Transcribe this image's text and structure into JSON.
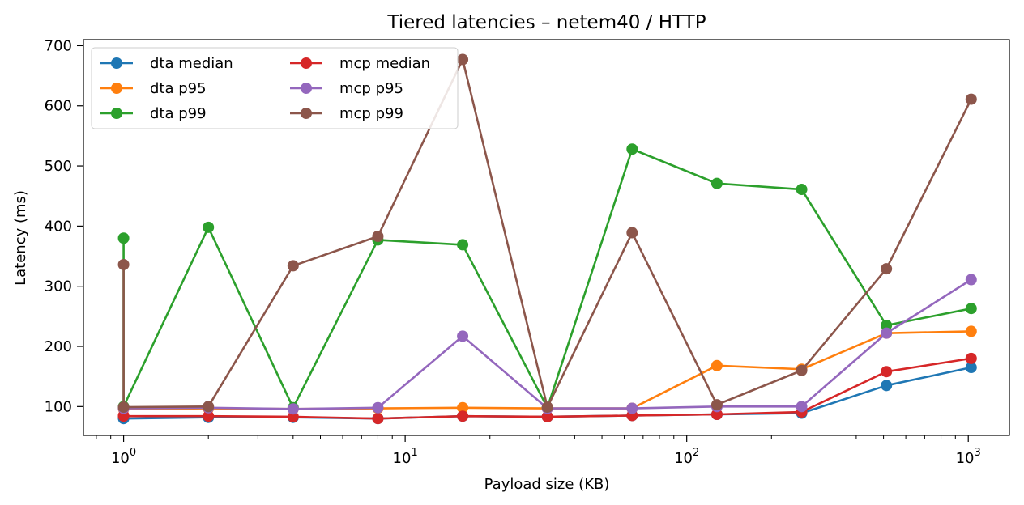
{
  "chart_data": {
    "type": "line",
    "title": "Tiered latencies – netem40 / HTTP",
    "xlabel": "Payload size (KB)",
    "ylabel": "Latency (ms)",
    "x_scale": "log",
    "xlim": [
      0.72,
      1400
    ],
    "ylim": [
      52,
      710
    ],
    "x_ticks": [
      {
        "value": 1,
        "base": "10",
        "exp": "0"
      },
      {
        "value": 10,
        "base": "10",
        "exp": "1"
      },
      {
        "value": 100,
        "base": "10",
        "exp": "2"
      },
      {
        "value": 1000,
        "base": "10",
        "exp": "3"
      }
    ],
    "y_ticks": [
      100,
      200,
      300,
      400,
      500,
      600,
      700
    ],
    "grid": false,
    "legend_position": "top-left",
    "legend_columns": 2,
    "series": [
      {
        "name": "dta median",
        "color": "#1f77b4",
        "x": [
          1,
          1,
          2,
          4,
          8,
          16,
          32,
          64,
          128,
          256,
          512,
          1024
        ],
        "y": [
          81,
          80,
          82,
          82,
          80,
          84,
          83,
          85,
          87,
          89,
          135,
          165
        ]
      },
      {
        "name": "dta p95",
        "color": "#ff7f0e",
        "x": [
          1,
          1,
          2,
          4,
          8,
          16,
          32,
          64,
          128,
          256,
          512,
          1024
        ],
        "y": [
          97,
          96,
          97,
          96,
          97,
          98,
          97,
          97,
          168,
          162,
          222,
          225
        ]
      },
      {
        "name": "dta p99",
        "color": "#2ca02c",
        "x": [
          1,
          1,
          2,
          4,
          8,
          16,
          32,
          64,
          128,
          256,
          512,
          1024
        ],
        "y": [
          380,
          100,
          398,
          98,
          377,
          369,
          98,
          528,
          471,
          461,
          235,
          263
        ]
      },
      {
        "name": "mcp median",
        "color": "#d62728",
        "x": [
          1,
          1,
          2,
          4,
          8,
          16,
          32,
          64,
          128,
          256,
          512,
          1024
        ],
        "y": [
          85,
          84,
          84,
          83,
          80,
          84,
          83,
          85,
          87,
          91,
          158,
          180
        ]
      },
      {
        "name": "mcp p95",
        "color": "#9467bd",
        "x": [
          1,
          1,
          2,
          4,
          8,
          16,
          32,
          64,
          128,
          256,
          512,
          1024
        ],
        "y": [
          98,
          97,
          98,
          96,
          98,
          217,
          97,
          97,
          100,
          100,
          222,
          311
        ]
      },
      {
        "name": "mcp p99",
        "color": "#8c564b",
        "x": [
          1,
          1,
          2,
          4,
          8,
          16,
          32,
          64,
          128,
          256,
          512,
          1024
        ],
        "y": [
          336,
          99,
          100,
          334,
          383,
          677,
          99,
          389,
          103,
          160,
          329,
          611
        ]
      }
    ]
  }
}
